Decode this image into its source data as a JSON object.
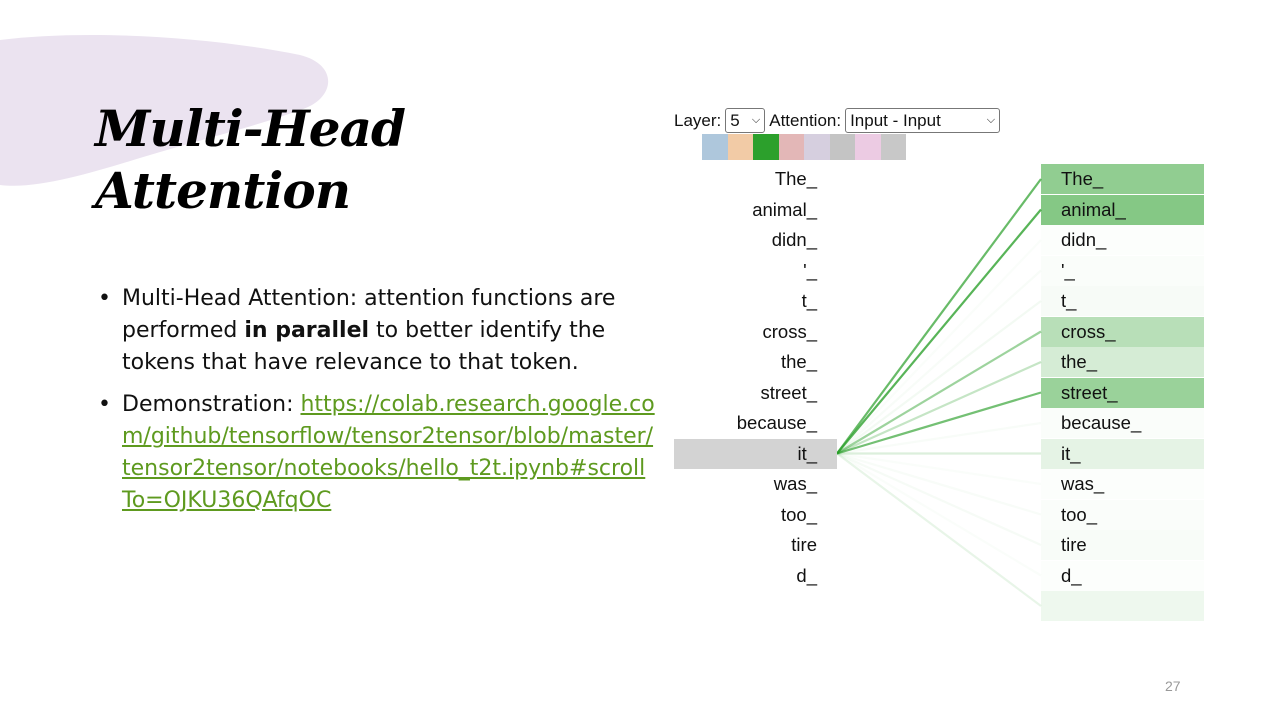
{
  "slide": {
    "title_line1": "Multi-Head",
    "title_line2": "Attention",
    "page_number": "27"
  },
  "bullets": [
    {
      "pre": "Multi-Head Attention: attention functions are performed ",
      "bold": "in parallel",
      "post": " to better identify the tokens that have relevance to that token."
    },
    {
      "pre": "Demonstration: ",
      "link": "https://colab.research.google.com/github/tensorflow/tensor2tensor/blob/master/tensor2tensor/notebooks/hello_t2t.ipynb#scrollTo=OJKU36QAfqOC"
    }
  ],
  "viz": {
    "layer_label": "Layer:",
    "layer_value": "5",
    "attention_label": "Attention:",
    "attention_value": "Input - Input",
    "head_colors": [
      "#aec7dc",
      "#f2cba6",
      "#2ca02c",
      "#e3b7b7",
      "#d6cfdf",
      "#c4c4c4",
      "#eccbe3",
      "#c8c8c8"
    ],
    "selected_head": 3,
    "selected_token": "it_",
    "accent": "#2ca02c",
    "tokens": [
      "The_",
      "animal_",
      "didn_",
      "'_",
      "t_",
      "cross_",
      "the_",
      "street_",
      "because_",
      "it_",
      "was_",
      "too_",
      "tire",
      "d_",
      ""
    ],
    "attention": [
      0.65,
      0.72,
      0.02,
      0.03,
      0.05,
      0.42,
      0.25,
      0.6,
      0.03,
      0.15,
      0.02,
      0.03,
      0.04,
      0.02,
      0.1
    ]
  }
}
